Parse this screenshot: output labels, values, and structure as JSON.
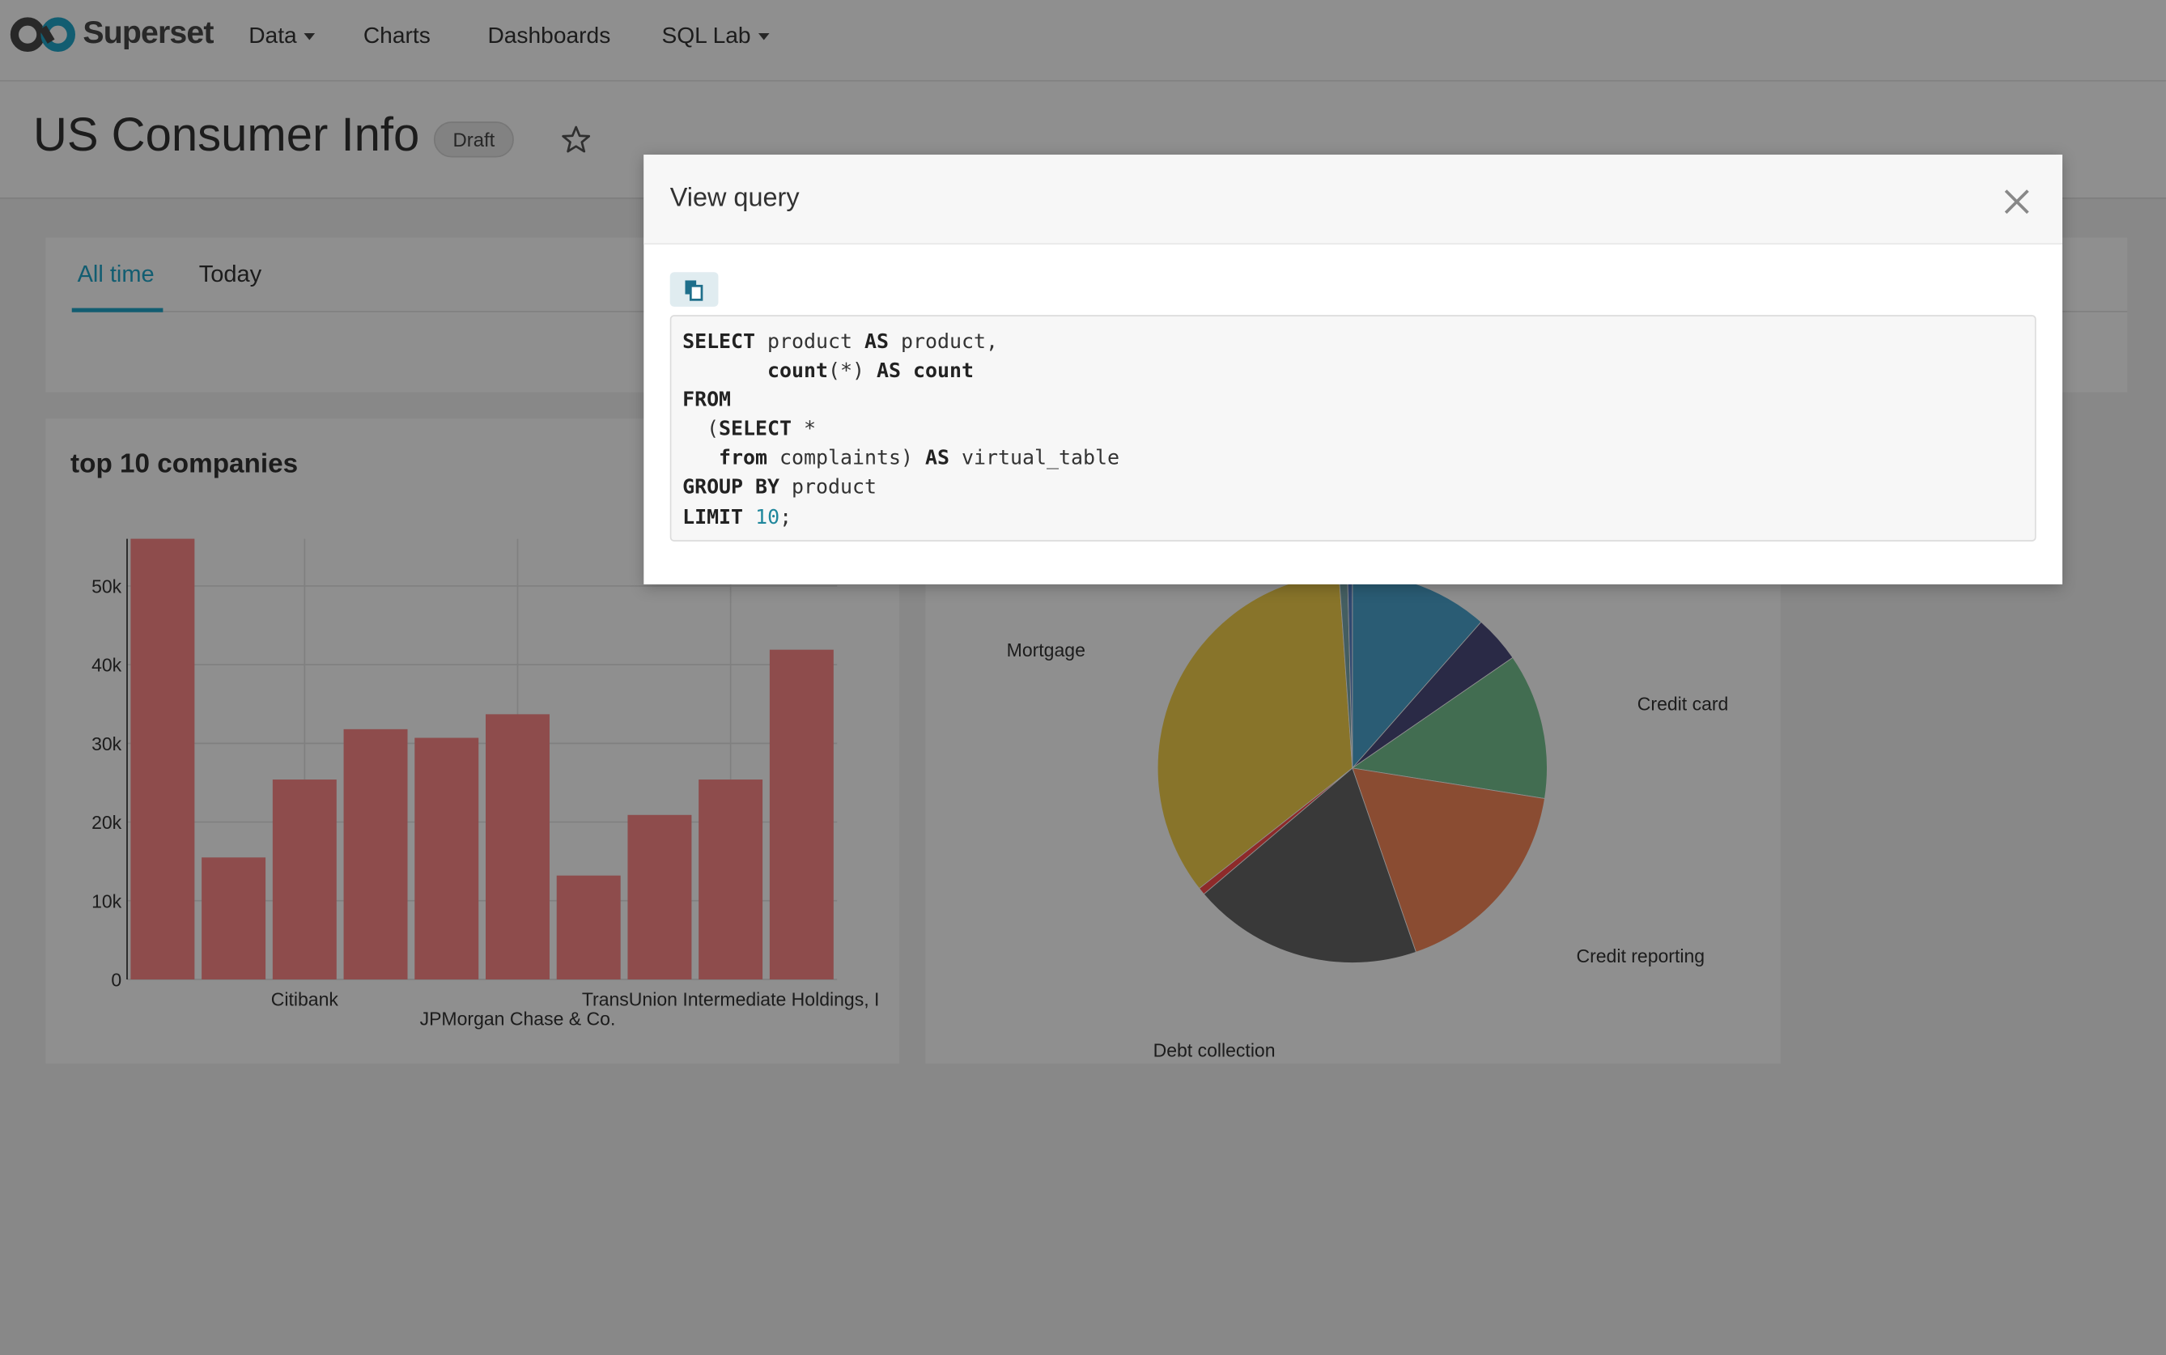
{
  "nav": {
    "brand": "Superset",
    "items": [
      "Data",
      "Charts",
      "Dashboards",
      "SQL Lab"
    ]
  },
  "dashboard": {
    "title": "US Consumer Info",
    "status": "Draft",
    "tabs": [
      "All time",
      "Today"
    ]
  },
  "charts": [
    {
      "chart_data": {
        "type": "bar",
        "title": "top 10 companies",
        "categories": [
          null,
          null,
          "Citibank",
          null,
          null,
          "JPMorgan Chase & Co.",
          null,
          null,
          "TransUnion Intermediate Holdings, I",
          null
        ],
        "values": [
          56000,
          15500,
          25400,
          31800,
          30700,
          33700,
          13200,
          20900,
          25400,
          41900
        ],
        "color": "#fd8888",
        "ylim": [
          0,
          56000
        ],
        "yticks": [
          0,
          {
            "value": 10000,
            "label": "10k"
          },
          {
            "value": 20000,
            "label": "20k"
          },
          {
            "value": 30000,
            "label": "30k"
          },
          {
            "value": 40000,
            "label": "40k"
          },
          {
            "value": 50000,
            "label": "50k"
          }
        ],
        "grid": true
      }
    },
    {
      "chart_data": {
        "type": "pie",
        "categories": [
          null,
          null,
          "Credit card",
          "Credit reporting",
          "Debt collection",
          null,
          "Mortgage",
          null,
          null
        ],
        "values": [
          11.5,
          3.9,
          12.1,
          17.2,
          19.1,
          0.6,
          34.5,
          0.7,
          0.4
        ],
        "colors": [
          "#4ca4cf",
          "#4c4c7e",
          "#76c390",
          "#f78859",
          "#666666",
          "#fd4c4c",
          "#f2cf4c",
          "#7aa8ad",
          "#5580c8"
        ]
      }
    }
  ],
  "modal": {
    "title": "View query",
    "sql": [
      "SELECT product AS product,",
      "       count(*) AS count",
      "FROM",
      "  (SELECT *",
      "   from complaints) AS virtual_table",
      "GROUP BY product",
      "LIMIT 10;"
    ]
  }
}
